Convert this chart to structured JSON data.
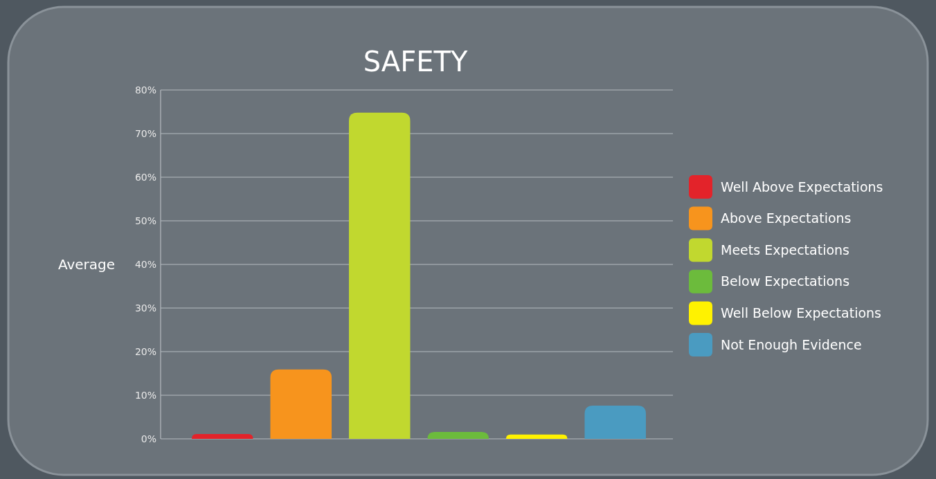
{
  "chart_data": {
    "type": "bar",
    "title": "SAFETY",
    "ylabel": "Average",
    "categories": [
      null
    ],
    "series": [
      {
        "name": "Well Above Expectations",
        "color": "#e3232a",
        "values": [
          1.1
        ]
      },
      {
        "name": "Above Expectations",
        "color": "#f7941d",
        "values": [
          15.9
        ]
      },
      {
        "name": "Meets Expectations",
        "color": "#c1d82f",
        "values": [
          74.8
        ]
      },
      {
        "name": "Below Expectations",
        "color": "#6cbb3c",
        "values": [
          1.6
        ]
      },
      {
        "name": "Well Below Expectations",
        "color": "#fff200",
        "values": [
          1
        ]
      },
      {
        "name": "Not Enough Evidence",
        "color": "#4a9bc1",
        "values": [
          7.6
        ]
      }
    ],
    "ylim": [
      0,
      80
    ],
    "yticks": [
      {
        "value": 0,
        "label": "0%"
      },
      {
        "value": 10,
        "label": "10%"
      },
      {
        "value": 20,
        "label": "20%"
      },
      {
        "value": 30,
        "label": "30%"
      },
      {
        "value": 40,
        "label": "40%"
      },
      {
        "value": 50,
        "label": "50%"
      },
      {
        "value": 60,
        "label": "60%"
      },
      {
        "value": 70,
        "label": "70%"
      },
      {
        "value": 80,
        "label": "80%"
      }
    ],
    "grid": "y",
    "legend": "right"
  }
}
